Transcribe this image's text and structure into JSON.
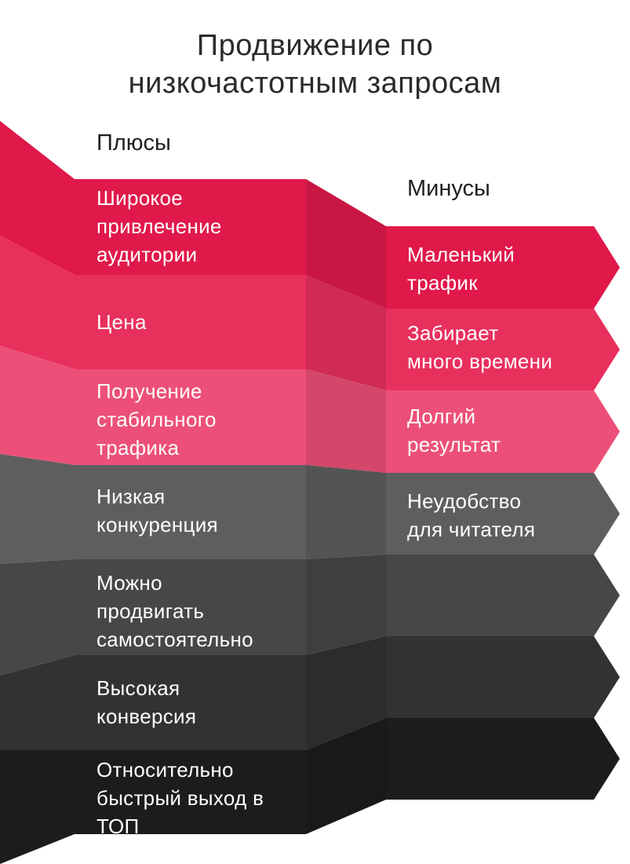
{
  "title": [
    "Продвижение по",
    "низкочастотным запросам"
  ],
  "pros_heading": "Плюсы",
  "cons_heading": "Минусы",
  "pros": [
    {
      "lines": [
        "Широкое",
        "привлечение",
        "аудитории"
      ],
      "color": "#e0194a"
    },
    {
      "lines": [
        "Цена"
      ],
      "color": "#e8305d"
    },
    {
      "lines": [
        "Получение",
        "стабильного",
        "трафика"
      ],
      "color": "#ec5078"
    },
    {
      "lines": [
        "Низкая",
        "конкуренция"
      ],
      "color": "#5e5e5e"
    },
    {
      "lines": [
        "Можно",
        "продвигать",
        "самостоятельно"
      ],
      "color": "#474747"
    },
    {
      "lines": [
        "Высокая",
        "конверсия"
      ],
      "color": "#323232"
    },
    {
      "lines": [
        "Относительно",
        "быстрый выход в",
        "ТОП"
      ],
      "color": "#1c1c1c"
    }
  ],
  "cons": [
    {
      "lines": [
        "Маленький",
        "трафик"
      ],
      "color": "#e0194a"
    },
    {
      "lines": [
        "Забирает",
        "много времени"
      ],
      "color": "#e8305d"
    },
    {
      "lines": [
        "Долгий",
        "результат"
      ],
      "color": "#ec5078"
    },
    {
      "lines": [
        "Неудобство",
        "для читателя"
      ],
      "color": "#5e5e5e"
    },
    {
      "lines": [],
      "color": "#474747"
    },
    {
      "lines": [],
      "color": "#323232"
    },
    {
      "lines": [],
      "color": "#1c1c1c"
    }
  ]
}
